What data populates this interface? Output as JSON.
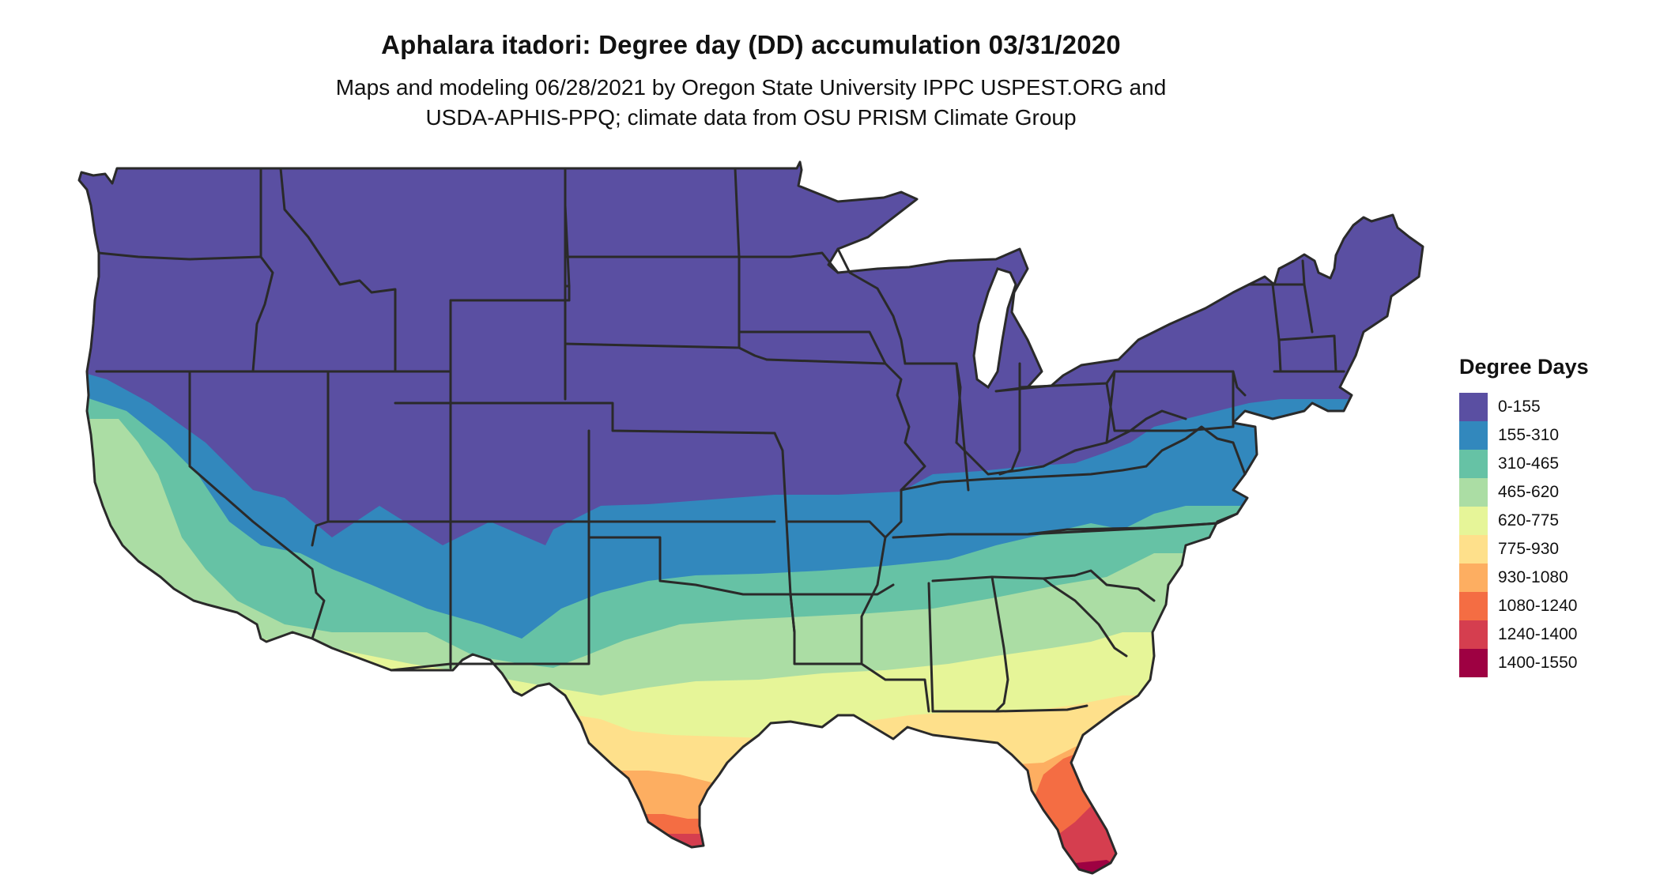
{
  "title": "Aphalara itadori: Degree day (DD) accumulation 03/31/2020",
  "subtitle_line1": "Maps and modeling 06/28/2021 by Oregon State University IPPC USPEST.ORG and",
  "subtitle_line2": "USDA-APHIS-PPQ; climate data from OSU PRISM Climate Group",
  "legend": {
    "title": "Degree Days",
    "items": [
      {
        "label": "0-155",
        "color": "#5a4fa2"
      },
      {
        "label": "155-310",
        "color": "#3288bd"
      },
      {
        "label": "310-465",
        "color": "#66c2a5"
      },
      {
        "label": "465-620",
        "color": "#abdda4"
      },
      {
        "label": "620-775",
        "color": "#e6f598"
      },
      {
        "label": "775-930",
        "color": "#fee08b"
      },
      {
        "label": "930-1080",
        "color": "#fdae61"
      },
      {
        "label": "1080-1240",
        "color": "#f46d43"
      },
      {
        "label": "1240-1400",
        "color": "#d53e4f"
      },
      {
        "label": "1400-1550",
        "color": "#9e0142"
      }
    ]
  },
  "map": {
    "region": "contiguous-united-states",
    "boundary_color": "#2a2a2a"
  }
}
